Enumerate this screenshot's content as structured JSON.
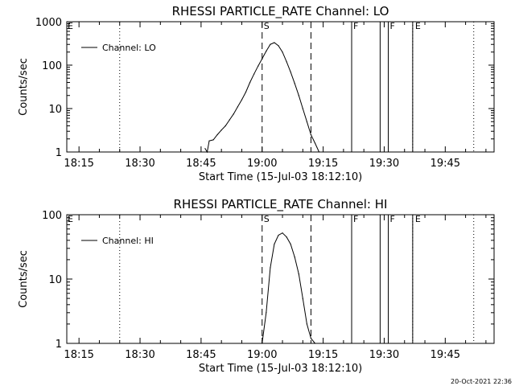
{
  "footer_timestamp": "20-Oct-2021 22:36",
  "chart_data": [
    {
      "type": "line",
      "title": "RHESSI PARTICLE_RATE Channel: LO",
      "xlabel": "Start Time (15-Jul-03 18:12:10)",
      "ylabel": "Counts/sec",
      "yscale": "log",
      "ylim": [
        1,
        1000
      ],
      "y_ticks": [
        1,
        10,
        100,
        1000
      ],
      "y_tick_labels": [
        "1",
        "10",
        "100",
        "1000"
      ],
      "xlim": [
        "18:12",
        "19:57"
      ],
      "x_ticks": [
        "18:15",
        "18:30",
        "18:45",
        "19:00",
        "19:15",
        "19:30",
        "19:45"
      ],
      "legend": {
        "position": "top-left",
        "label": "Channel: LO"
      },
      "series": [
        {
          "name": "Channel: LO",
          "x": [
            "18:46",
            "18:46:30",
            "18:47",
            "18:48",
            "18:49",
            "18:50",
            "18:51",
            "18:52",
            "18:53",
            "18:54",
            "18:55",
            "18:56",
            "18:57",
            "18:58",
            "18:59",
            "19:00",
            "19:01",
            "19:02",
            "19:03",
            "19:04",
            "19:05",
            "19:06",
            "19:07",
            "19:08",
            "19:09",
            "19:10",
            "19:11",
            "19:12",
            "19:13",
            "19:14"
          ],
          "y": [
            1.2,
            1.0,
            1.8,
            1.9,
            2.5,
            3.2,
            4.0,
            5.5,
            7.5,
            11,
            16,
            24,
            40,
            62,
            95,
            140,
            210,
            300,
            330,
            280,
            200,
            120,
            70,
            38,
            20,
            10,
            5,
            2.5,
            1.6,
            1.0
          ]
        }
      ],
      "dashed_markers": [
        {
          "time": "19:00",
          "label": "S"
        },
        {
          "time": "19:12",
          "label": ""
        }
      ],
      "solid_markers": [
        {
          "time": "19:22",
          "label": "F"
        },
        {
          "time": "19:29",
          "label": ""
        },
        {
          "time": "19:31",
          "label": "F"
        },
        {
          "time": "19:37",
          "label": ""
        }
      ],
      "dotted_markers": [
        {
          "time": "18:25",
          "label": ""
        },
        {
          "time": "19:37",
          "label": "E"
        },
        {
          "time": "19:52",
          "label": ""
        }
      ],
      "left_edge_label": "E"
    },
    {
      "type": "line",
      "title": "RHESSI PARTICLE_RATE Channel: HI",
      "xlabel": "Start Time (15-Jul-03 18:12:10)",
      "ylabel": "Counts/sec",
      "yscale": "log",
      "ylim": [
        1,
        100
      ],
      "y_ticks": [
        1,
        10,
        100
      ],
      "y_tick_labels": [
        "1",
        "10",
        "100"
      ],
      "xlim": [
        "18:12",
        "19:57"
      ],
      "x_ticks": [
        "18:15",
        "18:30",
        "18:45",
        "19:00",
        "19:15",
        "19:30",
        "19:45"
      ],
      "legend": {
        "position": "top-left",
        "label": "Channel: HI"
      },
      "series": [
        {
          "name": "Channel: HI",
          "x": [
            "19:00",
            "19:01",
            "19:02",
            "19:03",
            "19:04",
            "19:05",
            "19:06",
            "19:07",
            "19:08",
            "19:09",
            "19:10",
            "19:11",
            "19:12",
            "19:13"
          ],
          "y": [
            1.0,
            3.0,
            15,
            35,
            48,
            52,
            45,
            35,
            22,
            12,
            5,
            2,
            1.2,
            1.0
          ]
        }
      ],
      "dashed_markers": [
        {
          "time": "19:00",
          "label": "S"
        },
        {
          "time": "19:12",
          "label": ""
        }
      ],
      "solid_markers": [
        {
          "time": "19:22",
          "label": "F"
        },
        {
          "time": "19:29",
          "label": ""
        },
        {
          "time": "19:31",
          "label": "F"
        },
        {
          "time": "19:37",
          "label": ""
        }
      ],
      "dotted_markers": [
        {
          "time": "18:25",
          "label": ""
        },
        {
          "time": "19:37",
          "label": "E"
        },
        {
          "time": "19:52",
          "label": ""
        }
      ],
      "left_edge_label": "E"
    }
  ]
}
